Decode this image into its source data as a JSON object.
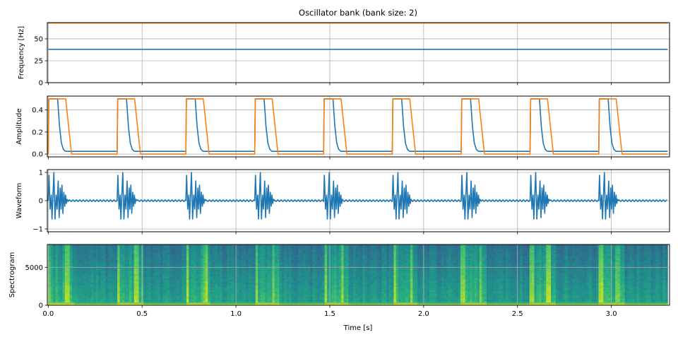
{
  "chart_data": [
    {
      "type": "line",
      "title": "Oscillator bank (bank size: 2)",
      "ylabel": "Frequency [Hz]",
      "xlim": [
        -0.005,
        3.31
      ],
      "ylim": [
        0,
        68.5
      ],
      "yticks": [
        0,
        25,
        50
      ],
      "xticks": [
        0.0,
        0.5,
        1.0,
        1.5,
        2.0,
        2.5,
        3.0
      ],
      "grid": true,
      "series": [
        {
          "color": "#1f77b4",
          "x": [
            0,
            3.3
          ],
          "y": [
            38,
            38
          ]
        },
        {
          "color": "#ff7f0e",
          "x": [
            0,
            3.3
          ],
          "y": [
            68,
            68
          ]
        }
      ]
    },
    {
      "type": "line",
      "ylabel": "Amplitude",
      "xlim": [
        -0.005,
        3.31
      ],
      "ylim": [
        -0.025,
        0.525
      ],
      "yticks": [
        0.0,
        0.2,
        0.4
      ],
      "ytick_labels": [
        "0.0",
        "0.2",
        "0.4"
      ],
      "grid": true,
      "pulse_onsets": [
        0.0,
        0.367,
        0.733,
        1.1,
        1.467,
        1.833,
        2.2,
        2.567,
        2.933
      ],
      "series": [
        {
          "color": "#1f77b4",
          "pulse_shape": [
            [
              0,
              0.025
            ],
            [
              0.003,
              0.5
            ],
            [
              0.05,
              0.5
            ],
            [
              0.06,
              0.25
            ],
            [
              0.07,
              0.1
            ],
            [
              0.08,
              0.045
            ],
            [
              0.09,
              0.027
            ],
            [
              0.1,
              0.025
            ]
          ],
          "baseline": 0.025
        },
        {
          "color": "#ff7f0e",
          "pulse_shape": [
            [
              0,
              0.0
            ],
            [
              0.003,
              0.5
            ],
            [
              0.093,
              0.5
            ],
            [
              0.124,
              0.0
            ]
          ],
          "baseline": 0.0
        }
      ]
    },
    {
      "type": "line",
      "ylabel": "Waveform",
      "xlim": [
        -0.005,
        3.31
      ],
      "ylim": [
        -1.1,
        1.1
      ],
      "yticks": [
        -1,
        0,
        1
      ],
      "ytick_labels": [
        "−1",
        "0",
        "1"
      ],
      "grid": true,
      "burst_onsets": [
        0.0,
        0.367,
        0.733,
        1.1,
        1.467,
        1.833,
        2.2,
        2.567,
        2.933
      ],
      "series": [
        {
          "color": "#1f77b4",
          "burst_shape": [
            [
              0,
              0
            ],
            [
              0.004,
              0.9
            ],
            [
              0.01,
              -0.3
            ],
            [
              0.016,
              0.2
            ],
            [
              0.02,
              -0.65
            ],
            [
              0.03,
              1.0
            ],
            [
              0.036,
              -0.65
            ],
            [
              0.042,
              0.2
            ],
            [
              0.047,
              -0.3
            ],
            [
              0.053,
              0.7
            ],
            [
              0.058,
              -0.6
            ],
            [
              0.064,
              0.45
            ],
            [
              0.068,
              -0.3
            ],
            [
              0.073,
              0.55
            ],
            [
              0.078,
              -0.45
            ],
            [
              0.083,
              0.3
            ],
            [
              0.088,
              -0.2
            ],
            [
              0.092,
              0.2
            ],
            [
              0.096,
              -0.1
            ],
            [
              0.1,
              0.05
            ],
            [
              0.105,
              0
            ]
          ],
          "residual_amplitude": 0.03,
          "residual_frequency_hz": 55
        }
      ]
    },
    {
      "type": "heatmap",
      "ylabel": "Spectrogram",
      "xlabel": "Time [s]",
      "xlim": [
        -0.005,
        3.31
      ],
      "ylim": [
        0,
        8000
      ],
      "yticks": [
        0,
        5000
      ],
      "xticks": [
        0.0,
        0.5,
        1.0,
        1.5,
        2.0,
        2.5,
        3.0
      ],
      "xtick_labels": [
        "0.0",
        "0.5",
        "1.0",
        "1.5",
        "2.0",
        "2.5",
        "3.0"
      ],
      "grid": true,
      "colormap": "viridis",
      "burst_onsets": [
        0.0,
        0.367,
        0.733,
        1.1,
        1.467,
        1.833,
        2.2,
        2.567,
        2.933
      ],
      "data_end": 3.3
    }
  ]
}
